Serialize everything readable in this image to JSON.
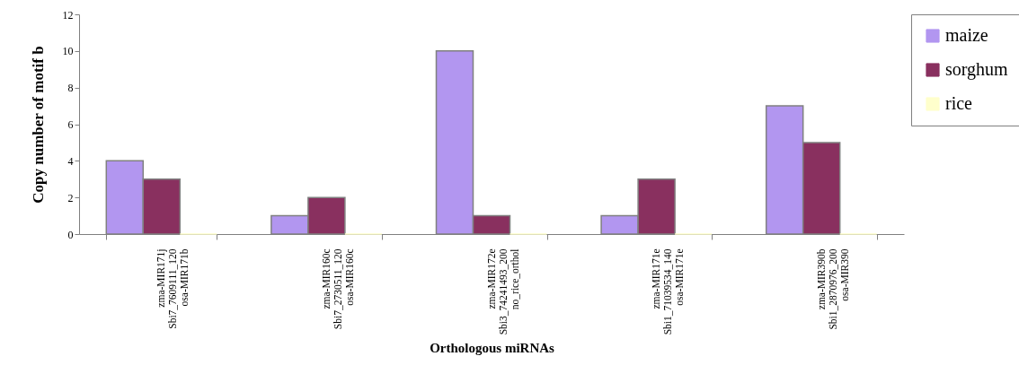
{
  "chart_data": {
    "type": "bar",
    "xlabel": "Orthologous miRNAs",
    "ylabel": "Copy number of motif  b",
    "categories": [
      "zma-MIR171j\nSbi7_7609111_120\nosa-MIR171b",
      "zma-MIR160c\nSbi7_2730511_120\nosa-MIR160c",
      "zma-MIR172e\nSbi3_74241493_200\nno_rice_orthol",
      "zma-MIR171e\nSbi1_71039534_140\nosa-MIR171e",
      "zma-MIR390b\nSbi1_2870976_200\nosa-MIR390"
    ],
    "series": [
      {
        "name": "maize",
        "color": "#b296f0",
        "values": [
          4,
          1,
          10,
          1,
          7
        ]
      },
      {
        "name": "sorghum",
        "color": "#89305f",
        "values": [
          3,
          2,
          1,
          3,
          5
        ]
      },
      {
        "name": "rice",
        "color": "#ffffcc",
        "values": [
          0,
          0,
          0,
          0,
          0
        ]
      }
    ],
    "ylim": [
      0,
      12
    ],
    "yticks": [
      0,
      2,
      4,
      6,
      8,
      10,
      12
    ],
    "grid": false,
    "legend": "right"
  }
}
